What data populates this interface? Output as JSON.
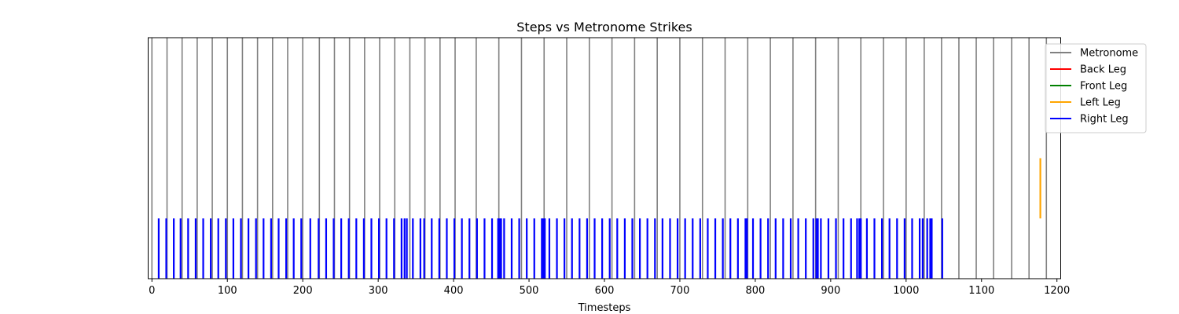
{
  "chart_data": {
    "type": "event_plot",
    "title": "Steps vs Metronome Strikes",
    "xlabel": "Timesteps",
    "ylabel": "",
    "xlim": [
      -5,
      1205
    ],
    "x_ticks": [
      0,
      100,
      200,
      300,
      400,
      500,
      600,
      700,
      800,
      900,
      1000,
      1100,
      1200
    ],
    "grid": false,
    "legend_position": "upper-right outside",
    "series": [
      {
        "name": "Metronome",
        "color": "#808080",
        "y_range": [
          0.0,
          1.0
        ],
        "x": [
          0,
          20,
          40,
          60,
          80,
          100,
          120,
          140,
          160,
          180,
          200,
          222,
          242,
          262,
          282,
          302,
          322,
          342,
          362,
          382,
          402,
          430,
          460,
          490,
          520,
          550,
          580,
          610,
          640,
          670,
          700,
          730,
          760,
          790,
          820,
          850,
          880,
          910,
          940,
          970,
          1000,
          1024,
          1047,
          1070,
          1093,
          1116,
          1140,
          1163,
          1186
        ]
      },
      {
        "name": "Back Leg",
        "color": "#ff0000",
        "y_range": [
          0.25,
          0.5
        ],
        "x": []
      },
      {
        "name": "Front Leg",
        "color": "#008000",
        "y_range": [
          0.25,
          0.5
        ],
        "x": []
      },
      {
        "name": "Left Leg",
        "color": "#ffa500",
        "y_range": [
          0.25,
          0.5
        ],
        "x": [
          1178
        ]
      },
      {
        "name": "Right Leg",
        "color": "#0000ff",
        "y_range": [
          0.0,
          0.25
        ],
        "x": [
          9,
          19,
          29,
          38,
          48,
          58,
          68,
          78,
          88,
          98,
          108,
          118,
          128,
          138,
          148,
          158,
          168,
          178,
          188,
          198,
          210,
          221,
          231,
          241,
          251,
          261,
          271,
          281,
          291,
          301,
          311,
          321,
          331,
          335,
          338,
          346,
          356,
          361,
          371,
          381,
          391,
          401,
          411,
          421,
          431,
          441,
          451,
          459,
          461,
          463,
          467,
          477,
          487,
          497,
          507,
          517,
          519,
          521,
          527,
          537,
          547,
          557,
          567,
          577,
          587,
          597,
          607,
          617,
          627,
          637,
          647,
          657,
          667,
          677,
          687,
          697,
          707,
          717,
          727,
          737,
          747,
          757,
          767,
          777,
          787,
          789,
          797,
          807,
          817,
          827,
          837,
          847,
          857,
          867,
          877,
          881,
          883,
          887,
          897,
          907,
          917,
          927,
          935,
          938,
          940,
          948,
          958,
          968,
          978,
          988,
          998,
          1008,
          1018,
          1022,
          1028,
          1032,
          1034,
          1048
        ]
      }
    ]
  }
}
